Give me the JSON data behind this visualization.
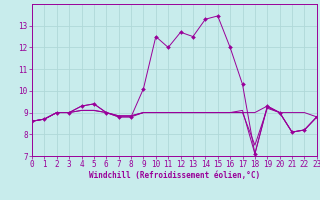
{
  "xlabel": "Windchill (Refroidissement éolien,°C)",
  "bg_color": "#c8ecec",
  "grid_color": "#b0d8d8",
  "line_color": "#990099",
  "x_hours": [
    0,
    1,
    2,
    3,
    4,
    5,
    6,
    7,
    8,
    9,
    10,
    11,
    12,
    13,
    14,
    15,
    16,
    17,
    18,
    19,
    20,
    21,
    22,
    23
  ],
  "series": [
    [
      8.6,
      8.7,
      9.0,
      9.0,
      9.3,
      9.4,
      9.0,
      8.8,
      8.8,
      10.1,
      12.5,
      12.0,
      12.7,
      12.5,
      13.3,
      13.45,
      12.0,
      10.3,
      7.1,
      9.3,
      9.0,
      8.1,
      8.2,
      8.8
    ],
    [
      8.6,
      8.7,
      9.0,
      9.0,
      9.3,
      9.4,
      9.0,
      8.8,
      8.8,
      9.0,
      9.0,
      9.0,
      9.0,
      9.0,
      9.0,
      9.0,
      9.0,
      9.0,
      9.0,
      9.3,
      9.0,
      9.0,
      9.0,
      8.8
    ],
    [
      8.6,
      8.7,
      9.0,
      9.0,
      9.1,
      9.1,
      9.0,
      8.85,
      8.85,
      9.0,
      9.0,
      9.0,
      9.0,
      9.0,
      9.0,
      9.0,
      9.0,
      9.0,
      7.5,
      9.2,
      9.0,
      8.1,
      8.2,
      8.8
    ],
    [
      8.6,
      8.7,
      9.0,
      9.0,
      9.1,
      9.1,
      9.0,
      8.85,
      8.85,
      9.0,
      9.0,
      9.0,
      9.0,
      9.0,
      9.0,
      9.0,
      9.0,
      9.1,
      7.1,
      9.25,
      9.0,
      8.1,
      8.2,
      8.8
    ]
  ],
  "ylim": [
    7,
    14
  ],
  "xlim": [
    0,
    23
  ],
  "yticks": [
    7,
    8,
    9,
    10,
    11,
    12,
    13
  ],
  "xticks": [
    0,
    1,
    2,
    3,
    4,
    5,
    6,
    7,
    8,
    9,
    10,
    11,
    12,
    13,
    14,
    15,
    16,
    17,
    18,
    19,
    20,
    21,
    22,
    23
  ],
  "tick_fontsize": 5.5,
  "xlabel_fontsize": 5.5,
  "marker_size": 2.0,
  "line_width": 0.7
}
